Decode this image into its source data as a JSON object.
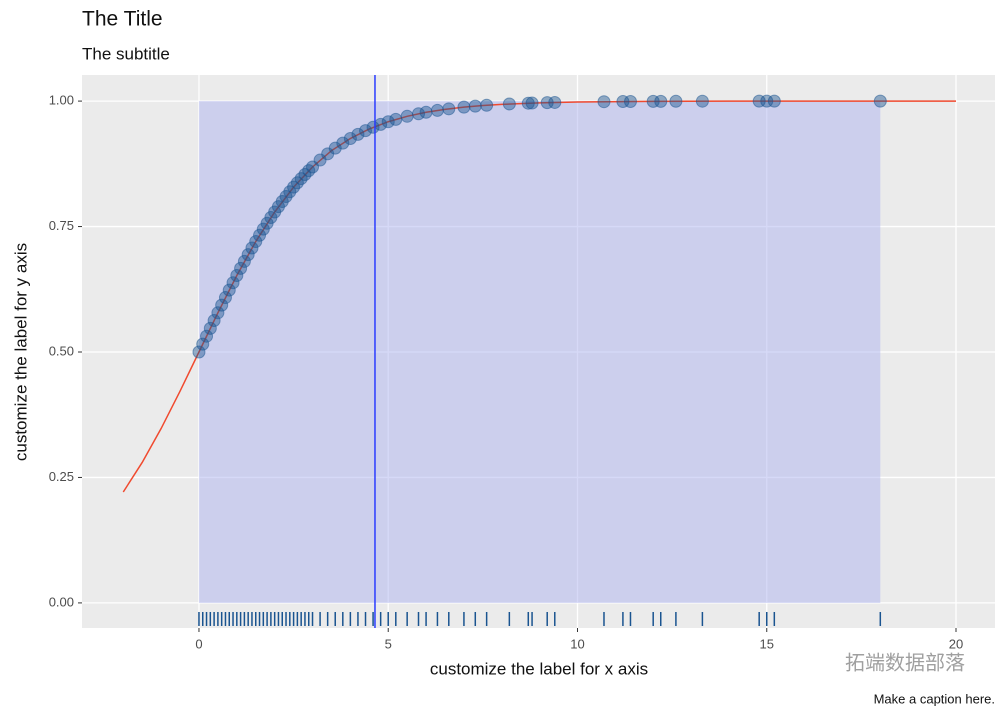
{
  "chart_data": {
    "type": "scatter",
    "title": "The Title",
    "subtitle": "The subtitle",
    "x_label": "customize the label for x axis",
    "y_label": "customize the label for y axis",
    "caption": "Make a caption here.",
    "watermark": "拓端数据部落",
    "xlim": [
      -3.09,
      21.03
    ],
    "ylim": [
      -0.05,
      1.052
    ],
    "xticks": [
      0,
      5,
      10,
      15,
      20
    ],
    "yticks": [
      {
        "value": 0,
        "label": "0.00"
      },
      {
        "value": 0.25,
        "label": "0.25"
      },
      {
        "value": 0.5,
        "label": "0.50"
      },
      {
        "value": 0.75,
        "label": "0.75"
      },
      {
        "value": 1,
        "label": "1.00"
      }
    ],
    "grid": true,
    "shade": {
      "x": [
        0,
        18
      ],
      "y": [
        0,
        1
      ],
      "color": "#aeb3f0"
    },
    "vline": {
      "x": 4.65,
      "color": "#2b3cff"
    },
    "curve": {
      "color": "#f04a2f",
      "x": [
        -2,
        -1.5,
        -1,
        -0.5,
        0,
        0.5,
        1,
        1.5,
        2,
        2.5,
        3,
        3.5,
        4,
        4.5,
        5,
        5.5,
        6,
        6.5,
        7,
        7.5,
        8,
        9,
        10,
        12,
        14,
        16,
        20
      ],
      "values": [
        0.221,
        0.2799,
        0.3475,
        0.4219,
        0.5,
        0.5781,
        0.6525,
        0.7201,
        0.779,
        0.8285,
        0.8687,
        0.9012,
        0.9255,
        0.9444,
        0.9589,
        0.9697,
        0.9777,
        0.9836,
        0.988,
        0.9912,
        0.9935,
        0.9965,
        0.9982,
        0.9995,
        0.9999,
        1,
        1
      ]
    },
    "points": {
      "color": "#1a5490",
      "x": [
        0,
        0.1,
        0.2,
        0.3,
        0.4,
        0.5,
        0.6,
        0.7,
        0.8,
        0.9,
        1,
        1.1,
        1.2,
        1.3,
        1.4,
        1.5,
        1.6,
        1.7,
        1.8,
        1.9,
        2,
        2.1,
        2.2,
        2.3,
        2.4,
        2.5,
        2.6,
        2.7,
        2.8,
        2.9,
        3,
        3.2,
        3.4,
        3.6,
        3.8,
        4,
        4.2,
        4.4,
        4.6,
        4.8,
        5,
        5.2,
        5.5,
        5.8,
        6,
        6.3,
        6.6,
        7,
        7.3,
        7.6,
        8.2,
        8.7,
        8.8,
        9.2,
        9.4,
        10.7,
        11.2,
        11.4,
        12,
        12.2,
        12.6,
        13.3,
        14.8,
        15,
        15.2,
        18
      ],
      "values": [
        0.5,
        0.5157,
        0.5315,
        0.5471,
        0.5627,
        0.5781,
        0.5934,
        0.6085,
        0.6234,
        0.6381,
        0.6525,
        0.6666,
        0.6805,
        0.694,
        0.7072,
        0.7201,
        0.7326,
        0.7448,
        0.7566,
        0.768,
        0.779,
        0.7897,
        0.7999,
        0.8098,
        0.8193,
        0.8285,
        0.8372,
        0.8456,
        0.8537,
        0.8614,
        0.8687,
        0.8825,
        0.8949,
        0.9062,
        0.9163,
        0.9255,
        0.9337,
        0.9411,
        0.9478,
        0.9536,
        0.9589,
        0.9636,
        0.9697,
        0.9748,
        0.9777,
        0.9815,
        0.9846,
        0.988,
        0.99,
        0.9917,
        0.9943,
        0.9958,
        0.9961,
        0.997,
        0.9973,
        0.9988,
        0.9991,
        0.9992,
        0.9995,
        0.9995,
        0.9996,
        0.9998,
        0.9999,
        0.9999,
        0.9999,
        1
      ]
    }
  }
}
